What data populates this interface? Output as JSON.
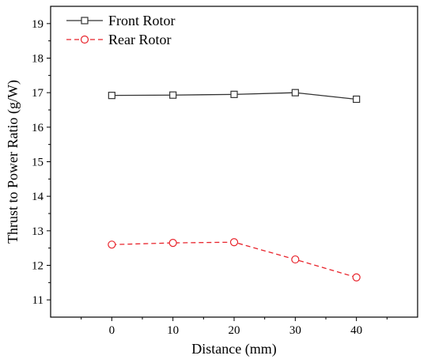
{
  "chart_data": {
    "type": "line",
    "xlabel": "Distance (mm)",
    "ylabel": "Thrust to Power Ratio (g/W)",
    "x": [
      0,
      10,
      20,
      30,
      40
    ],
    "xlim": [
      -10,
      50
    ],
    "ylim": [
      10.5,
      19.5
    ],
    "xticks": [
      0,
      10,
      20,
      30,
      40
    ],
    "yticks": [
      11,
      12,
      13,
      14,
      15,
      16,
      17,
      18,
      19
    ],
    "legend_position": "top-left",
    "grid": false,
    "series": [
      {
        "name": "Front Rotor",
        "values": [
          16.92,
          16.93,
          16.95,
          17.0,
          16.81
        ],
        "color": "#333333",
        "marker": "square",
        "line": "solid"
      },
      {
        "name": "Rear Rotor",
        "values": [
          12.6,
          12.65,
          12.67,
          12.17,
          11.65
        ],
        "color": "#e8232b",
        "marker": "circle",
        "line": "dashed"
      }
    ]
  }
}
